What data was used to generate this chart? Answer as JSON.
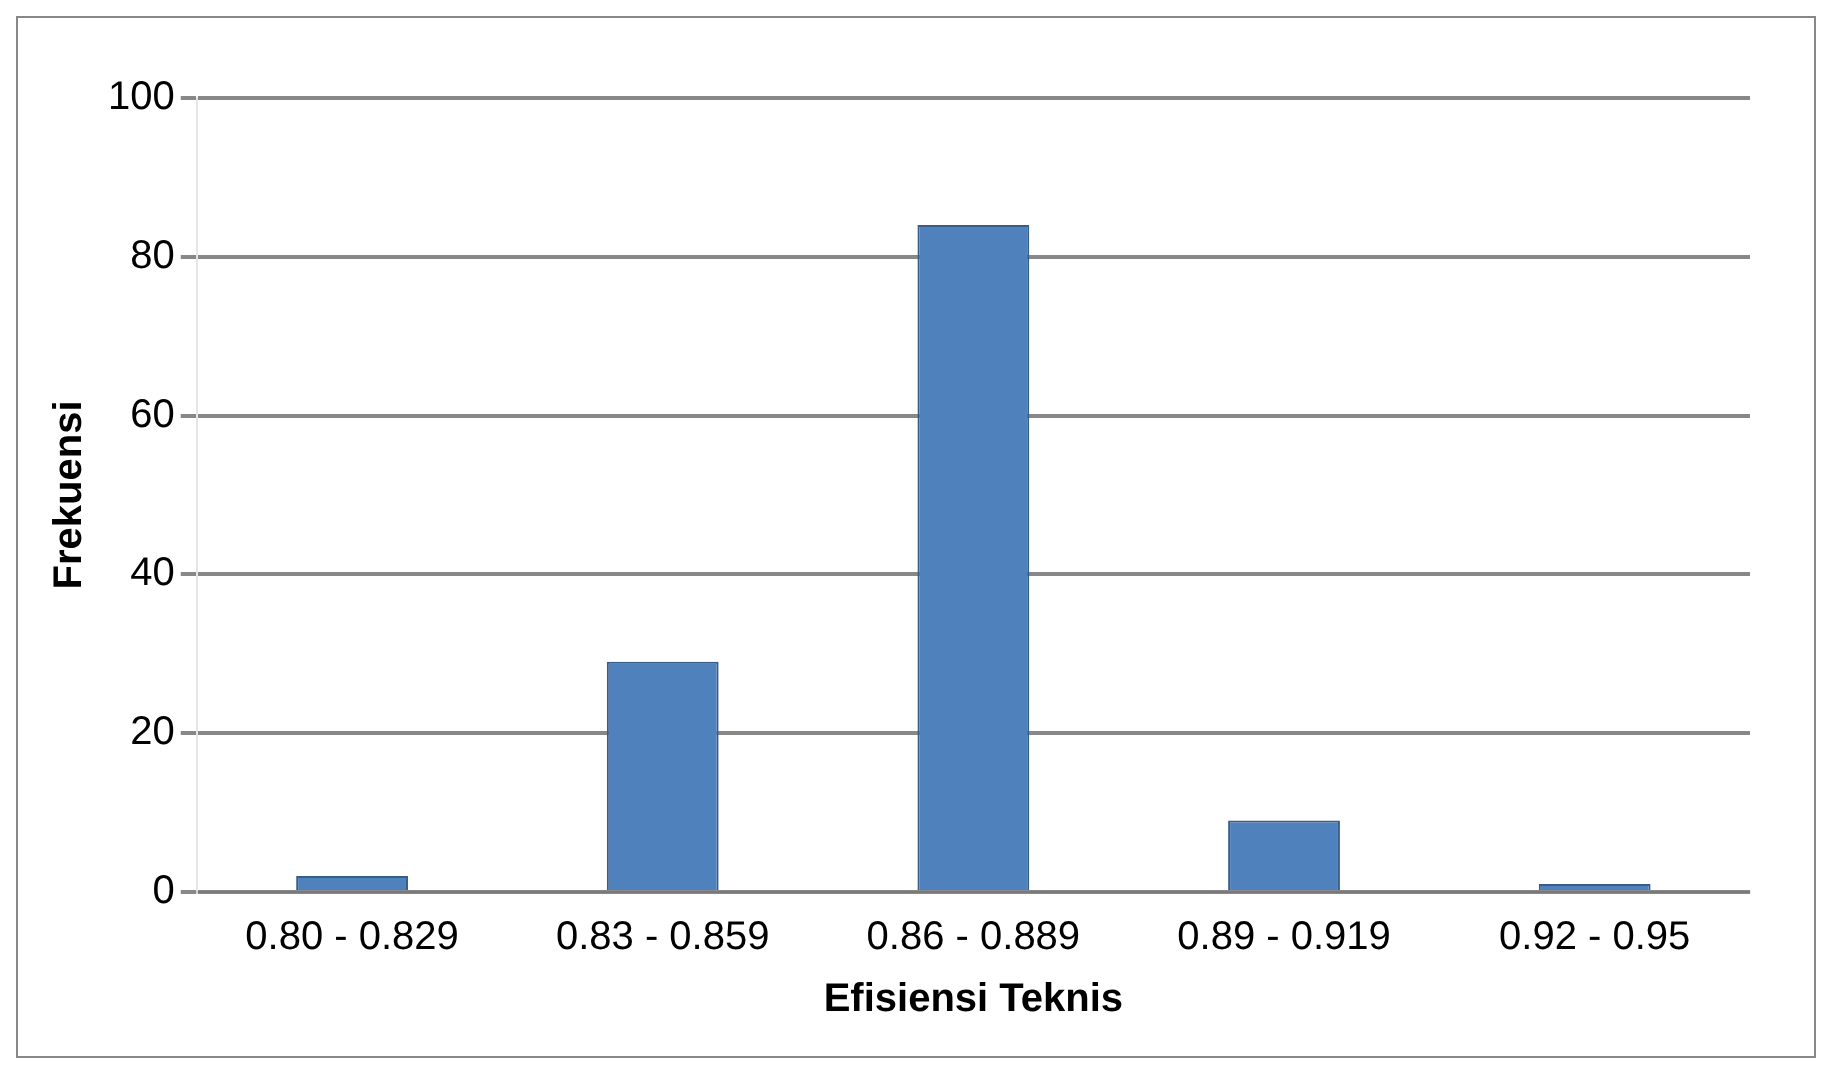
{
  "chart_data": {
    "type": "bar",
    "xlabel": "Efisiensi Teknis",
    "ylabel": "Frekuensi",
    "categories": [
      "0.80 - 0.829",
      "0.83 - 0.859",
      "0.86 - 0.889",
      "0.89 - 0.919",
      "0.92 - 0.95"
    ],
    "values": [
      2,
      29,
      84,
      9,
      1
    ],
    "color": "#4f81bd",
    "ylim": [
      0,
      100
    ],
    "yticks": [
      0,
      20,
      40,
      60,
      80,
      100
    ],
    "grid": "y",
    "legend": false
  }
}
